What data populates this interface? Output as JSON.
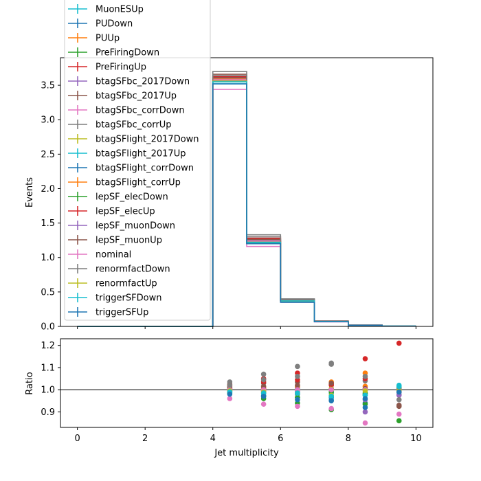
{
  "chart_data": [
    {
      "type": "step",
      "xlabel": "",
      "ylabel": "Events",
      "xlim": [
        -0.5,
        10.5
      ],
      "ylim": [
        0,
        3.9
      ],
      "yticks": [
        "0.0",
        "0.5",
        "1.0",
        "1.5",
        "2.0",
        "2.5",
        "3.0",
        "3.5"
      ],
      "bin_edges": [
        0,
        1,
        2,
        3,
        4,
        5,
        6,
        7,
        8,
        9,
        10
      ],
      "legend_position": "upper-left",
      "series": [
        {
          "name": "MuonESUp",
          "color": "#17becf",
          "values": [
            0,
            0,
            0,
            0,
            3.52,
            1.21,
            0.37,
            0.07,
            0.017,
            0.005
          ]
        },
        {
          "name": "PUDown",
          "color": "#1f77b4",
          "values": [
            0,
            0,
            0,
            0,
            3.55,
            1.23,
            0.37,
            0.07,
            0.017,
            0.005
          ]
        },
        {
          "name": "PUUp",
          "color": "#ff7f0e",
          "values": [
            0,
            0,
            0,
            0,
            3.6,
            1.24,
            0.37,
            0.07,
            0.017,
            0.005
          ]
        },
        {
          "name": "PreFiringDown",
          "color": "#2ca02c",
          "values": [
            0,
            0,
            0,
            0,
            3.56,
            1.2,
            0.36,
            0.07,
            0.016,
            0.004
          ]
        },
        {
          "name": "PreFiringUp",
          "color": "#d62728",
          "values": [
            0,
            0,
            0,
            0,
            3.62,
            1.3,
            0.38,
            0.07,
            0.02,
            0.006
          ]
        },
        {
          "name": "btagSFbc_2017Down",
          "color": "#9467bd",
          "values": [
            0,
            0,
            0,
            0,
            3.6,
            1.25,
            0.37,
            0.07,
            0.016,
            0.005
          ]
        },
        {
          "name": "btagSFbc_2017Up",
          "color": "#8c564b",
          "values": [
            0,
            0,
            0,
            0,
            3.66,
            1.27,
            0.38,
            0.07,
            0.017,
            0.005
          ]
        },
        {
          "name": "btagSFbc_corrDown",
          "color": "#e377c2",
          "values": [
            0,
            0,
            0,
            0,
            3.44,
            1.16,
            0.35,
            0.065,
            0.015,
            0.004
          ]
        },
        {
          "name": "btagSFbc_corrUp",
          "color": "#7f7f7f",
          "values": [
            0,
            0,
            0,
            0,
            3.7,
            1.33,
            0.4,
            0.08,
            0.019,
            0.005
          ]
        },
        {
          "name": "btagSFlight_2017Down",
          "color": "#bcbd22",
          "values": [
            0,
            0,
            0,
            0,
            3.57,
            1.23,
            0.37,
            0.07,
            0.017,
            0.005
          ]
        },
        {
          "name": "btagSFlight_2017Up",
          "color": "#17becf",
          "values": [
            0,
            0,
            0,
            0,
            3.58,
            1.24,
            0.37,
            0.07,
            0.017,
            0.005
          ]
        },
        {
          "name": "btagSFlight_corrDown",
          "color": "#1f77b4",
          "values": [
            0,
            0,
            0,
            0,
            3.56,
            1.22,
            0.37,
            0.07,
            0.017,
            0.005
          ]
        },
        {
          "name": "btagSFlight_corrUp",
          "color": "#ff7f0e",
          "values": [
            0,
            0,
            0,
            0,
            3.59,
            1.24,
            0.37,
            0.07,
            0.017,
            0.005
          ]
        },
        {
          "name": "lepSF_elecDown",
          "color": "#2ca02c",
          "values": [
            0,
            0,
            0,
            0,
            3.55,
            1.21,
            0.36,
            0.07,
            0.017,
            0.005
          ]
        },
        {
          "name": "lepSF_elecUp",
          "color": "#d62728",
          "values": [
            0,
            0,
            0,
            0,
            3.63,
            1.28,
            0.38,
            0.075,
            0.018,
            0.005
          ]
        },
        {
          "name": "lepSF_muonDown",
          "color": "#9467bd",
          "values": [
            0,
            0,
            0,
            0,
            3.56,
            1.22,
            0.37,
            0.07,
            0.016,
            0.005
          ]
        },
        {
          "name": "lepSF_muonUp",
          "color": "#8c564b",
          "values": [
            0,
            0,
            0,
            0,
            3.61,
            1.26,
            0.38,
            0.07,
            0.017,
            0.005
          ]
        },
        {
          "name": "nominal",
          "color": "#e377c2",
          "values": [
            0,
            0,
            0,
            0,
            3.58,
            1.24,
            0.37,
            0.07,
            0.017,
            0.005
          ]
        },
        {
          "name": "renormfactDown",
          "color": "#7f7f7f",
          "values": [
            0,
            0,
            0,
            0,
            3.64,
            1.3,
            0.39,
            0.075,
            0.018,
            0.005
          ]
        },
        {
          "name": "renormfactUp",
          "color": "#bcbd22",
          "values": [
            0,
            0,
            0,
            0,
            3.56,
            1.22,
            0.37,
            0.07,
            0.017,
            0.005
          ]
        },
        {
          "name": "triggerSFDown",
          "color": "#17becf",
          "values": [
            0,
            0,
            0,
            0,
            3.55,
            1.22,
            0.37,
            0.07,
            0.017,
            0.005
          ]
        },
        {
          "name": "triggerSFUp",
          "color": "#1f77b4",
          "values": [
            0,
            0,
            0,
            0,
            3.52,
            1.2,
            0.35,
            0.068,
            0.016,
            0.005
          ]
        }
      ]
    },
    {
      "type": "scatter",
      "xlabel": "Jet multiplicity",
      "ylabel": "Ratio",
      "xlim": [
        -0.5,
        10.5
      ],
      "ylim": [
        0.83,
        1.23
      ],
      "xticks": [
        "0",
        "2",
        "4",
        "6",
        "8",
        "10"
      ],
      "yticks": [
        "0.9",
        "1.0",
        "1.1",
        "1.2"
      ],
      "reference_line": 1.0,
      "x": [
        4.5,
        5.5,
        6.5,
        7.5,
        8.5,
        9.5
      ],
      "series": [
        {
          "color": "#17becf",
          "values": [
            0.985,
            0.975,
            0.965,
            0.955,
            0.975,
            0.995
          ]
        },
        {
          "color": "#1f77b4",
          "values": [
            0.99,
            0.995,
            0.995,
            1.0,
            0.94,
            1.01
          ]
        },
        {
          "color": "#ff7f0e",
          "values": [
            1.005,
            1.01,
            1.01,
            1.03,
            1.075,
            1.005
          ]
        },
        {
          "color": "#2ca02c",
          "values": [
            0.99,
            0.96,
            0.94,
            0.91,
            0.935,
            0.86
          ]
        },
        {
          "color": "#d62728",
          "values": [
            1.015,
            1.05,
            1.075,
            1.02,
            1.14,
            1.21
          ]
        },
        {
          "color": "#9467bd",
          "values": [
            1.005,
            0.99,
            0.985,
            1.005,
            0.9,
            0.975
          ]
        },
        {
          "color": "#8c564b",
          "values": [
            1.025,
            1.03,
            1.035,
            1.0,
            0.98,
            0.925
          ]
        },
        {
          "color": "#e377c2",
          "values": [
            0.96,
            0.935,
            0.925,
            0.915,
            0.85,
            0.89
          ]
        },
        {
          "color": "#7f7f7f",
          "values": [
            1.035,
            1.07,
            1.105,
            1.12,
            1.04,
            0.955
          ]
        },
        {
          "color": "#bcbd22",
          "values": [
            0.995,
            0.995,
            1.0,
            1.005,
            1.0,
            1.0
          ]
        },
        {
          "color": "#17becf",
          "values": [
            1.0,
            1.005,
            1.005,
            0.985,
            0.98,
            1.02
          ]
        },
        {
          "color": "#1f77b4",
          "values": [
            0.99,
            0.985,
            0.98,
            0.965,
            0.92,
            0.99
          ]
        },
        {
          "color": "#ff7f0e",
          "values": [
            1.01,
            1.005,
            1.015,
            1.035,
            1.015,
            0.995
          ]
        },
        {
          "color": "#2ca02c",
          "values": [
            0.985,
            0.97,
            0.965,
            0.99,
            0.985,
            1.01
          ]
        },
        {
          "color": "#d62728",
          "values": [
            1.02,
            1.035,
            1.045,
            1.025,
            1.05,
            0.99
          ]
        },
        {
          "color": "#9467bd",
          "values": [
            0.995,
            0.985,
            0.99,
            0.97,
            0.955,
            0.98
          ]
        },
        {
          "color": "#8c564b",
          "values": [
            1.01,
            1.015,
            1.02,
            1.03,
            1.005,
            0.93
          ]
        },
        {
          "color": "#e377c2",
          "values": [
            1.0,
            1.0,
            1.0,
            1.0,
            1.0,
            1.0
          ]
        },
        {
          "color": "#7f7f7f",
          "values": [
            1.02,
            1.045,
            1.06,
            1.115,
            1.06,
            1.005
          ]
        },
        {
          "color": "#bcbd22",
          "values": [
            0.995,
            0.99,
            0.985,
            0.975,
            0.995,
            0.995
          ]
        },
        {
          "color": "#17becf",
          "values": [
            0.99,
            0.985,
            0.985,
            0.97,
            0.975,
            1.015
          ]
        },
        {
          "color": "#1f77b4",
          "values": [
            0.98,
            0.97,
            0.955,
            0.95,
            0.96,
            0.99
          ]
        }
      ]
    }
  ]
}
